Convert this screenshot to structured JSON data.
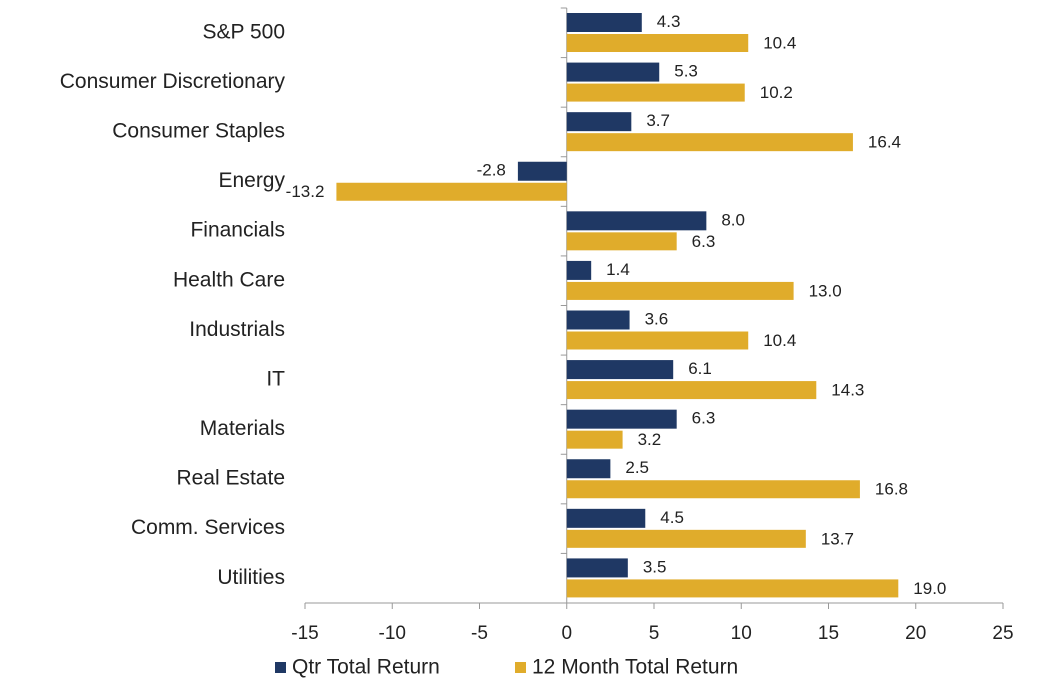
{
  "chart_data": {
    "type": "bar",
    "orientation": "horizontal",
    "categories": [
      "S&P 500",
      "Consumer Discretionary",
      "Consumer Staples",
      "Energy",
      "Financials",
      "Health Care",
      "Industrials",
      "IT",
      "Materials",
      "Real Estate",
      "Comm. Services",
      "Utilities"
    ],
    "series": [
      {
        "name": "Qtr Total Return",
        "color": "#1f3864",
        "values": [
          4.3,
          5.3,
          3.7,
          -2.8,
          8.0,
          1.4,
          3.6,
          6.1,
          6.3,
          2.5,
          4.5,
          3.5
        ],
        "value_labels": [
          "4.3",
          "5.3",
          "3.7",
          "-2.8",
          "8.0",
          "1.4",
          "3.6",
          "6.1",
          "6.3",
          "2.5",
          "4.5",
          "3.5"
        ]
      },
      {
        "name": "12 Month Total Return",
        "color": "#e0ac2b",
        "values": [
          10.4,
          10.2,
          16.4,
          -13.2,
          6.3,
          13.0,
          10.4,
          14.3,
          3.2,
          16.8,
          13.7,
          19.0
        ],
        "value_labels": [
          "10.4",
          "10.2",
          "16.4",
          "-13.2",
          "6.3",
          "13.0",
          "10.4",
          "14.3",
          "3.2",
          "16.8",
          "13.7",
          "19.0"
        ]
      }
    ],
    "xlim": [
      -15,
      25
    ],
    "xticks": [
      -15,
      -10,
      -5,
      0,
      5,
      10,
      15,
      20,
      25
    ],
    "legend": "bottom",
    "grid": false
  }
}
